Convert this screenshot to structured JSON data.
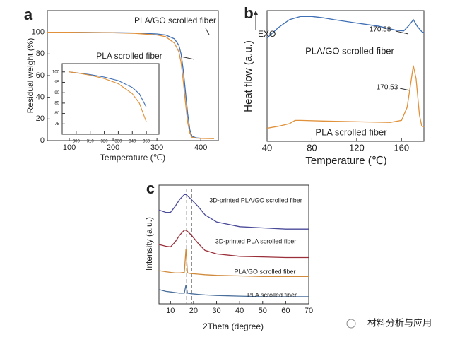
{
  "chart_data": [
    {
      "type": "line",
      "panel_label": "a",
      "x_label": "Temperature (℃)",
      "y_label": "Residual weight (%)",
      "xlim": [
        50,
        440
      ],
      "ylim": [
        0,
        120
      ],
      "xticks": [
        100,
        200,
        300,
        400
      ],
      "yticks": [
        0,
        20,
        40,
        60,
        80,
        100
      ],
      "x": [
        50,
        100,
        200,
        250,
        300,
        320,
        340,
        350,
        355,
        360,
        365,
        370,
        375,
        380,
        390,
        400,
        430
      ],
      "series": [
        {
          "name": "PLA/GO scrolled fiber",
          "color": "#3f6fb5",
          "values": [
            100,
            100,
            99.7,
            99.3,
            98.5,
            97.5,
            94,
            88,
            80,
            65,
            45,
            25,
            10,
            4,
            2.5,
            2.2,
            2
          ]
        },
        {
          "name": "PLA scrolled fiber",
          "color": "#e0913a",
          "values": [
            100,
            100,
            99.6,
            99,
            97.5,
            96,
            90,
            82,
            72,
            55,
            35,
            17,
            7,
            3,
            2.3,
            2,
            1.8
          ]
        }
      ],
      "inset": {
        "xlim": [
          290,
          359
        ],
        "ylim": [
          70,
          104
        ],
        "xticks": [
          300,
          310,
          320,
          330,
          340,
          350
        ],
        "yticks": [
          75,
          80,
          85,
          90,
          95,
          100
        ],
        "x": [
          295,
          300,
          310,
          320,
          330,
          340,
          345,
          350
        ],
        "series": [
          {
            "color": "#3f6fb5",
            "values": [
              100,
              99.6,
              98.7,
              97.5,
              95.8,
              92.5,
              89.5,
              83
            ]
          },
          {
            "color": "#e0913a",
            "values": [
              100,
              99.6,
              98.4,
              96.8,
              94.3,
              89.5,
              85,
              76
            ]
          }
        ]
      }
    },
    {
      "type": "line",
      "panel_label": "b",
      "x_label": "Temperature (℃)",
      "y_label": "Heat flow (a.u.)",
      "annotation": "EXO",
      "xlim": [
        40,
        180
      ],
      "ylim": [
        0,
        10
      ],
      "xticks": [
        40,
        80,
        120,
        160
      ],
      "peaks": [
        170.58,
        170.53
      ],
      "series": [
        {
          "name": "PLA/GO scrolled fiber",
          "color": "#3f6fb5",
          "x": [
            40,
            50,
            60,
            70,
            80,
            90,
            100,
            120,
            140,
            155,
            162,
            167,
            170.58,
            174,
            178,
            180
          ],
          "values": [
            7.9,
            8.7,
            9.3,
            9.55,
            9.55,
            9.45,
            9.3,
            9.05,
            8.8,
            8.5,
            8.45,
            8.9,
            9.3,
            8.8,
            8.4,
            8.3
          ]
        },
        {
          "name": "PLA scrolled fiber",
          "color": "#e0913a",
          "x": [
            40,
            50,
            60,
            65,
            70,
            90,
            120,
            150,
            160,
            165,
            168,
            170.53,
            173,
            176,
            178,
            180
          ],
          "values": [
            1.0,
            1.15,
            1.35,
            1.6,
            1.6,
            1.55,
            1.5,
            1.45,
            1.6,
            2.6,
            4.3,
            5.8,
            4.8,
            2.0,
            1.2,
            1.1
          ]
        }
      ]
    },
    {
      "type": "line",
      "panel_label": "c",
      "x_label": "2Theta (degree)",
      "y_label": "Intensity (a.u.)",
      "xlim": [
        5,
        70
      ],
      "ylim": [
        0,
        10
      ],
      "xticks": [
        10,
        20,
        30,
        40,
        50,
        60,
        70
      ],
      "ref_lines": [
        17,
        19.2
      ],
      "x": [
        5,
        8,
        10,
        12,
        14,
        16,
        16.7,
        17.4,
        19,
        22,
        25,
        30,
        40,
        50,
        60,
        70
      ],
      "series": [
        {
          "name": "3D-printed PLA/GO scrolled fiber",
          "color": "#4a4a9a",
          "values": [
            7.9,
            7.7,
            7.7,
            8.2,
            8.8,
            9.2,
            9.2,
            9.1,
            8.8,
            8.2,
            7.5,
            6.9,
            6.5,
            6.4,
            6.3,
            6.3
          ]
        },
        {
          "name": "3D-printed PLA scrolled fiber",
          "color": "#9a2f3a",
          "values": [
            5.0,
            4.85,
            4.8,
            5.2,
            5.8,
            6.2,
            6.2,
            6.1,
            5.8,
            5.1,
            4.5,
            4.2,
            4.0,
            3.95,
            3.9,
            3.9
          ]
        },
        {
          "name": "PLA/GO scrolled fiber",
          "color": "#d08a3a",
          "values": [
            2.8,
            2.7,
            2.65,
            2.6,
            2.6,
            2.65,
            4.6,
            2.6,
            2.55,
            2.5,
            2.45,
            2.4,
            2.35,
            2.3,
            2.3,
            2.3
          ]
        },
        {
          "name": "PLA scrolled fiber",
          "color": "#4a6f9a",
          "values": [
            1.2,
            1.05,
            1.0,
            0.95,
            0.9,
            0.9,
            1.6,
            0.9,
            0.85,
            0.8,
            0.75,
            0.7,
            0.65,
            0.6,
            0.6,
            0.6
          ]
        }
      ]
    }
  ],
  "watermark": "材料分析与应用"
}
